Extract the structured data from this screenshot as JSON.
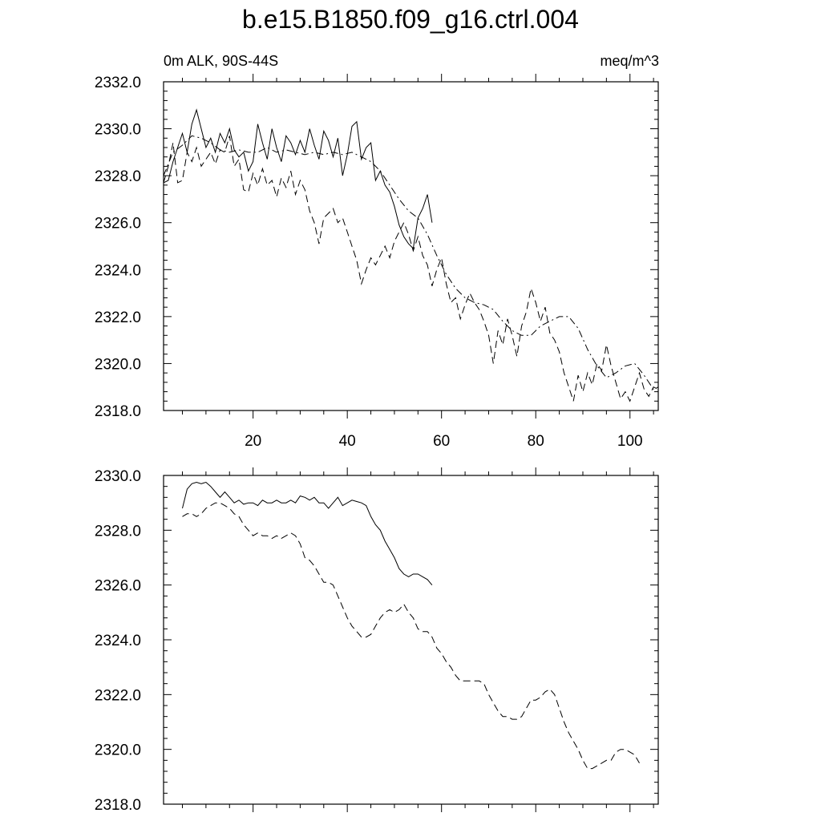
{
  "title": "b.e15.B1850.f09_g16.ctrl.004",
  "left_string": "0m ALK, 90S-44S",
  "right_string": "meq/m^3",
  "chart_data": [
    {
      "type": "line",
      "xlim": [
        1,
        106
      ],
      "ylim": [
        2318,
        2332
      ],
      "xticks": [
        20,
        40,
        60,
        80,
        100
      ],
      "xtick_labels": [
        "20",
        "40",
        "60",
        "80",
        "100"
      ],
      "yticks": [
        2318,
        2320,
        2322,
        2324,
        2326,
        2328,
        2330,
        2332
      ],
      "ytick_labels": [
        "2318.0",
        "2320.0",
        "2322.0",
        "2324.0",
        "2326.0",
        "2328.0",
        "2330.0",
        "2332.0"
      ],
      "grid": false,
      "series": [
        {
          "style": "solid",
          "x": [
            1,
            2,
            3,
            4,
            5,
            6,
            7,
            8,
            9,
            10,
            11,
            12,
            13,
            14,
            15,
            16,
            17,
            18,
            19,
            20,
            21,
            22,
            23,
            24,
            25,
            26,
            27,
            28,
            29,
            30,
            31,
            32,
            33,
            34,
            35,
            36,
            37,
            38,
            39,
            40,
            41,
            42,
            43,
            44,
            45,
            46,
            47,
            48,
            49,
            50,
            51,
            52,
            53,
            54,
            55,
            56,
            57,
            58
          ],
          "y": [
            2327.7,
            2327.8,
            2328.6,
            2329.2,
            2329.8,
            2329.0,
            2330.2,
            2330.8,
            2330.0,
            2329.2,
            2329.6,
            2329.0,
            2329.8,
            2329.4,
            2330.0,
            2329.1,
            2328.8,
            2329.0,
            2328.2,
            2328.6,
            2330.2,
            2329.4,
            2328.7,
            2330.0,
            2329.2,
            2328.6,
            2329.7,
            2329.4,
            2328.9,
            2329.5,
            2329.0,
            2330.0,
            2329.3,
            2328.7,
            2329.9,
            2329.5,
            2328.8,
            2329.6,
            2328.0,
            2328.9,
            2330.1,
            2330.3,
            2328.7,
            2329.2,
            2329.4,
            2327.8,
            2328.2,
            2327.6,
            2327.3,
            2326.7,
            2325.9,
            2325.4,
            2325.1,
            2324.9,
            2326.2,
            2326.6,
            2327.2,
            2326.0
          ]
        },
        {
          "style": "dash",
          "x": [
            1,
            2,
            3,
            4,
            5,
            6,
            7,
            8,
            9,
            10,
            11,
            12,
            13,
            14,
            15,
            16,
            17,
            18,
            19,
            20,
            21,
            22,
            23,
            24,
            25,
            26,
            27,
            28,
            29,
            30,
            31,
            32,
            33,
            34,
            35,
            36,
            37,
            38,
            39,
            40,
            41,
            42,
            43,
            44,
            45,
            46,
            47,
            48,
            49,
            50,
            51,
            52,
            53,
            54,
            55,
            56,
            57,
            58,
            59,
            60,
            61,
            62,
            63,
            64,
            65,
            66,
            67,
            68,
            69,
            70,
            71,
            72,
            73,
            74,
            75,
            76,
            77,
            78,
            79,
            80,
            81,
            82,
            83,
            84,
            85,
            86,
            87,
            88,
            89,
            90,
            91,
            92,
            93,
            94,
            95,
            96,
            97,
            98,
            99,
            100,
            101,
            102,
            103,
            104,
            105,
            106
          ],
          "y": [
            2327.7,
            2328.4,
            2329.4,
            2327.7,
            2327.8,
            2329.0,
            2328.6,
            2329.2,
            2328.4,
            2328.7,
            2329.0,
            2328.5,
            2329.1,
            2329.0,
            2329.7,
            2328.4,
            2328.7,
            2327.4,
            2327.3,
            2328.1,
            2327.6,
            2328.3,
            2327.6,
            2327.8,
            2327.1,
            2327.9,
            2327.5,
            2328.2,
            2327.2,
            2327.8,
            2327.4,
            2326.5,
            2326.0,
            2325.1,
            2326.2,
            2326.4,
            2326.6,
            2326.0,
            2326.2,
            2325.6,
            2325.0,
            2324.4,
            2323.4,
            2324.0,
            2324.5,
            2324.2,
            2324.6,
            2325.0,
            2324.5,
            2325.2,
            2325.6,
            2326.0,
            2325.5,
            2324.8,
            2325.4,
            2324.6,
            2324.2,
            2323.3,
            2324.0,
            2324.5,
            2323.4,
            2322.6,
            2322.8,
            2321.9,
            2322.5,
            2323.0,
            2322.6,
            2322.3,
            2321.8,
            2321.2,
            2320.0,
            2321.4,
            2320.8,
            2321.9,
            2321.2,
            2320.3,
            2321.6,
            2322.2,
            2323.2,
            2322.6,
            2321.8,
            2322.4,
            2321.3,
            2321.0,
            2320.5,
            2319.6,
            2319.0,
            2318.4,
            2319.5,
            2318.8,
            2319.6,
            2319.1,
            2320.0,
            2319.7,
            2320.8,
            2319.9,
            2319.2,
            2318.5,
            2318.8,
            2318.4,
            2319.0,
            2319.6,
            2318.9,
            2318.6,
            2319.0,
            2318.9
          ]
        },
        {
          "style": "dashdot",
          "x": [
            1,
            3,
            5,
            7,
            9,
            11,
            13,
            15,
            17,
            19,
            21,
            23,
            25,
            27,
            29,
            31,
            33,
            35,
            37,
            39,
            41,
            43,
            45,
            47,
            49,
            51,
            53,
            55,
            57,
            59,
            61,
            63,
            65,
            67,
            69,
            71,
            73,
            75,
            77,
            79,
            81,
            83,
            85,
            87,
            89,
            91,
            93,
            95,
            97,
            99,
            101,
            103,
            105,
            106
          ],
          "y": [
            2328.0,
            2329.0,
            2329.3,
            2329.7,
            2329.6,
            2329.4,
            2329.1,
            2329.0,
            2329.1,
            2329.0,
            2329.0,
            2329.2,
            2329.0,
            2329.1,
            2329.0,
            2328.9,
            2329.0,
            2328.9,
            2329.0,
            2328.9,
            2329.0,
            2328.8,
            2328.6,
            2328.2,
            2327.6,
            2327.0,
            2326.5,
            2326.2,
            2325.5,
            2324.6,
            2323.8,
            2323.2,
            2322.8,
            2322.6,
            2322.5,
            2322.3,
            2321.8,
            2321.4,
            2321.2,
            2321.2,
            2321.6,
            2321.8,
            2322.0,
            2322.0,
            2321.5,
            2320.6,
            2319.9,
            2319.4,
            2319.6,
            2319.9,
            2320.0,
            2319.5,
            2318.9,
            2319.0
          ]
        }
      ]
    },
    {
      "type": "line",
      "xlim": [
        1,
        106
      ],
      "ylim": [
        2318,
        2330
      ],
      "xticks": [
        20,
        40,
        60,
        80,
        100
      ],
      "xtick_labels": [],
      "yticks": [
        2318,
        2320,
        2322,
        2324,
        2326,
        2328,
        2330
      ],
      "ytick_labels": [
        "2318.0",
        "2320.0",
        "2322.0",
        "2324.0",
        "2326.0",
        "2328.0",
        "2330.0"
      ],
      "grid": false,
      "series": [
        {
          "style": "solid",
          "x": [
            5,
            6,
            7,
            8,
            9,
            10,
            11,
            12,
            13,
            14,
            15,
            16,
            17,
            18,
            19,
            20,
            21,
            22,
            23,
            24,
            25,
            26,
            27,
            28,
            29,
            30,
            31,
            32,
            33,
            34,
            35,
            36,
            37,
            38,
            39,
            40,
            41,
            42,
            43,
            44,
            45,
            46,
            47,
            48,
            49,
            50,
            51,
            52,
            53,
            54,
            55,
            56,
            57,
            58
          ],
          "y": [
            2328.8,
            2329.5,
            2329.7,
            2329.75,
            2329.7,
            2329.75,
            2329.6,
            2329.4,
            2329.2,
            2329.4,
            2329.2,
            2329.0,
            2329.1,
            2328.95,
            2329.0,
            2329.0,
            2328.9,
            2329.1,
            2329.0,
            2329.0,
            2329.1,
            2329.0,
            2329.0,
            2329.1,
            2329.0,
            2329.25,
            2329.2,
            2329.1,
            2329.2,
            2329.0,
            2329.0,
            2328.8,
            2329.0,
            2329.2,
            2328.9,
            2329.0,
            2329.1,
            2329.05,
            2329.0,
            2328.9,
            2328.5,
            2328.2,
            2328.0,
            2327.6,
            2327.3,
            2327.0,
            2326.6,
            2326.4,
            2326.3,
            2326.4,
            2326.4,
            2326.3,
            2326.2,
            2326.0
          ]
        },
        {
          "style": "dash",
          "x": [
            5,
            6,
            7,
            8,
            9,
            10,
            11,
            12,
            13,
            14,
            15,
            16,
            17,
            18,
            19,
            20,
            21,
            22,
            23,
            24,
            25,
            26,
            27,
            28,
            29,
            30,
            31,
            32,
            33,
            34,
            35,
            36,
            37,
            38,
            39,
            40,
            41,
            42,
            43,
            44,
            45,
            46,
            47,
            48,
            49,
            50,
            51,
            52,
            53,
            54,
            55,
            56,
            57,
            58,
            59,
            60,
            61,
            62,
            63,
            64,
            65,
            66,
            67,
            68,
            69,
            70,
            71,
            72,
            73,
            74,
            75,
            76,
            77,
            78,
            79,
            80,
            81,
            82,
            83,
            84,
            85,
            86,
            87,
            88,
            89,
            90,
            91,
            92,
            93,
            94,
            95,
            96,
            97,
            98,
            99,
            100,
            101,
            102
          ],
          "y": [
            2328.5,
            2328.6,
            2328.6,
            2328.5,
            2328.6,
            2328.8,
            2328.9,
            2329.0,
            2329.0,
            2328.9,
            2328.8,
            2328.6,
            2328.5,
            2328.2,
            2328.0,
            2327.8,
            2327.9,
            2327.8,
            2327.8,
            2327.7,
            2327.8,
            2327.7,
            2327.8,
            2327.9,
            2327.8,
            2327.5,
            2327.0,
            2326.9,
            2326.7,
            2326.4,
            2326.1,
            2326.1,
            2326.0,
            2325.6,
            2325.2,
            2324.8,
            2324.5,
            2324.3,
            2324.1,
            2324.1,
            2324.2,
            2324.5,
            2324.8,
            2325.0,
            2325.1,
            2325.0,
            2325.1,
            2325.3,
            2325.0,
            2324.8,
            2324.4,
            2324.3,
            2324.3,
            2324.1,
            2323.7,
            2323.5,
            2323.2,
            2323.0,
            2322.7,
            2322.5,
            2322.5,
            2322.5,
            2322.5,
            2322.5,
            2322.4,
            2322.0,
            2321.7,
            2321.4,
            2321.2,
            2321.2,
            2321.1,
            2321.1,
            2321.2,
            2321.5,
            2321.8,
            2321.8,
            2321.9,
            2322.1,
            2322.2,
            2322.0,
            2321.5,
            2321.0,
            2320.6,
            2320.3,
            2320.0,
            2319.6,
            2319.3,
            2319.3,
            2319.4,
            2319.5,
            2319.6,
            2319.6,
            2319.9,
            2320.0,
            2320.0,
            2319.9,
            2319.8,
            2319.5
          ]
        }
      ]
    }
  ]
}
